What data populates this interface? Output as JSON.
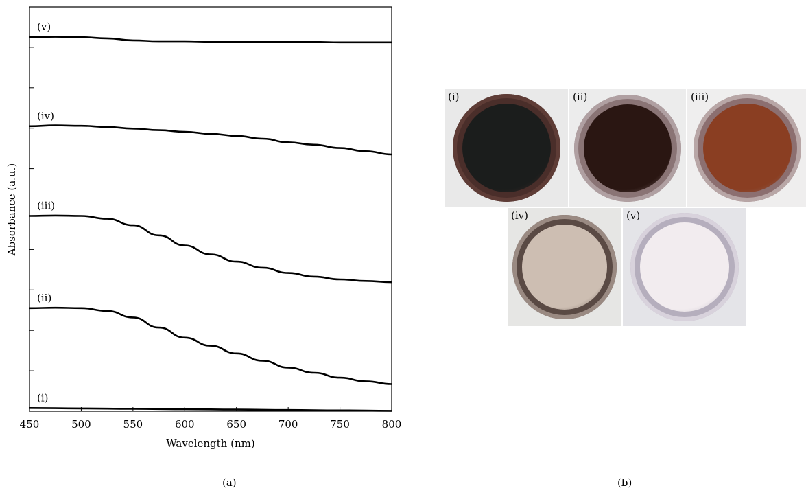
{
  "chart_data": {
    "type": "line",
    "xlabel": "Wavelength (nm)",
    "ylabel": "Absorbance (a.u.)",
    "xlim": [
      450,
      800
    ],
    "ylim": [
      0,
      1
    ],
    "xticks": [
      450,
      500,
      550,
      600,
      650,
      700,
      750,
      800
    ],
    "y_tick_labels_shown": false,
    "grid": false,
    "series": [
      {
        "name": "(i)",
        "x": [
          450,
          500,
          550,
          600,
          650,
          700,
          750,
          800
        ],
        "y": [
          0.008,
          0.007,
          0.006,
          0.005,
          0.004,
          0.003,
          0.002,
          0.001
        ]
      },
      {
        "name": "(ii)",
        "x": [
          450,
          475,
          500,
          525,
          550,
          575,
          600,
          625,
          650,
          675,
          700,
          725,
          750,
          775,
          800
        ],
        "y": [
          0.255,
          0.256,
          0.255,
          0.248,
          0.232,
          0.207,
          0.182,
          0.162,
          0.143,
          0.125,
          0.108,
          0.095,
          0.083,
          0.074,
          0.067
        ]
      },
      {
        "name": "(iii)",
        "x": [
          450,
          475,
          500,
          525,
          550,
          575,
          600,
          625,
          650,
          675,
          700,
          725,
          750,
          775,
          800
        ],
        "y": [
          0.483,
          0.484,
          0.483,
          0.476,
          0.46,
          0.435,
          0.41,
          0.388,
          0.37,
          0.355,
          0.342,
          0.333,
          0.326,
          0.322,
          0.319
        ]
      },
      {
        "name": "(iv)",
        "x": [
          450,
          475,
          500,
          525,
          550,
          575,
          600,
          625,
          650,
          675,
          700,
          725,
          750,
          775,
          800
        ],
        "y": [
          0.705,
          0.707,
          0.706,
          0.703,
          0.699,
          0.695,
          0.691,
          0.686,
          0.681,
          0.674,
          0.665,
          0.659,
          0.651,
          0.643,
          0.635
        ]
      },
      {
        "name": "(v)",
        "x": [
          450,
          475,
          500,
          525,
          550,
          575,
          600,
          625,
          650,
          675,
          700,
          725,
          750,
          775,
          800
        ],
        "y": [
          0.925,
          0.926,
          0.925,
          0.922,
          0.917,
          0.915,
          0.915,
          0.914,
          0.914,
          0.913,
          0.913,
          0.913,
          0.912,
          0.912,
          0.912
        ]
      }
    ]
  },
  "panel_a_caption": "(a)",
  "panel_b_caption": "(b)",
  "photos": [
    {
      "label": "(i)",
      "rim": "#4a2e2a",
      "inner": "#1b1d1c",
      "ring": "#5e3c36"
    },
    {
      "label": "(ii)",
      "rim": "#8a7475",
      "inner": "#2a1612",
      "ring": "#b0a0a2"
    },
    {
      "label": "(iii)",
      "rim": "#8c6f70",
      "inner": "#8a3e22",
      "ring": "#b8a6a6"
    },
    {
      "label": "(iv)",
      "rim": "#5a4a44",
      "inner": "#cdbeb2",
      "ring": "#9a8a82"
    },
    {
      "label": "(v)",
      "rim": "#b5aebd",
      "inner": "#f2ecef",
      "ring": "#d8d2dc"
    }
  ]
}
